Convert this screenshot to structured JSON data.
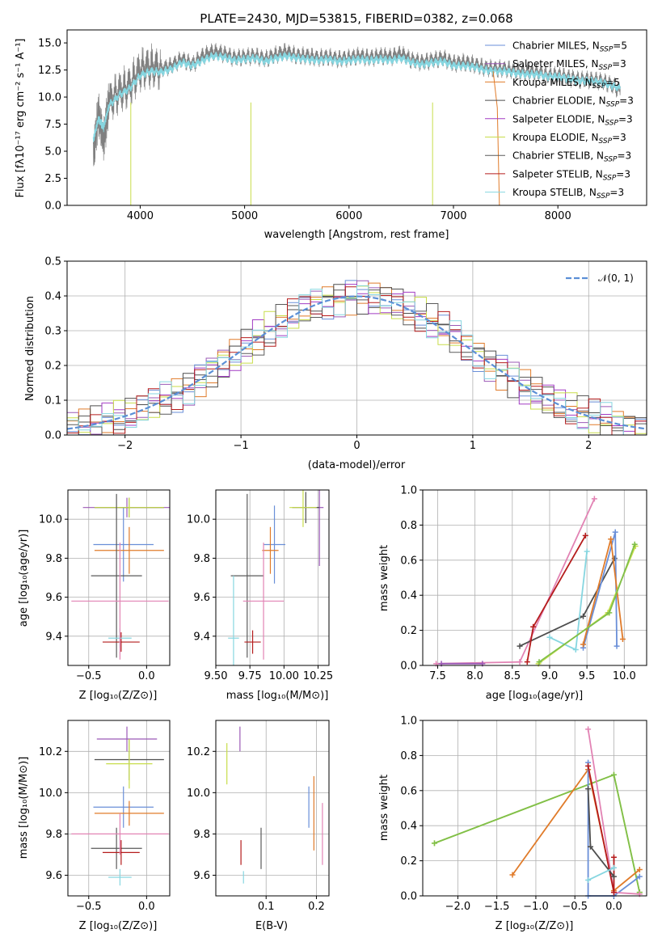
{
  "figure": {
    "title": "PLATE=2430, MJD=53815, FIBERID=0382, z=0.068"
  },
  "colors": [
    "#6a8fd8",
    "#9b59b6",
    "#e07b2a",
    "#4e4e4e",
    "#a23cc4",
    "#c8dd4a",
    "#5a5a5a",
    "#b51c1c",
    "#86d6e0",
    "#e283b4",
    "#7fbf4a"
  ],
  "spectrum": {
    "type": "line",
    "xlabel": "wavelength [Angstrom, rest frame]",
    "ylabel": "Flux [fλ10⁻¹⁷ erg cm⁻² s⁻¹ A⁻¹]",
    "xlim": [
      3300,
      8850
    ],
    "ylim": [
      0,
      16.2
    ],
    "xticks": [
      4000,
      5000,
      6000,
      7000,
      8000
    ],
    "yticks": [
      "0.0",
      "2.5",
      "5.0",
      "7.5",
      "10.0",
      "12.5",
      "15.0"
    ],
    "legend": [
      {
        "label": "Chabrier MILES, N",
        "sub": "SSP",
        "suffix": "=5",
        "color": "#6a8fd8"
      },
      {
        "label": "Salpeter MILES, N",
        "sub": "SSP",
        "suffix": "=3",
        "color": "#9b59b6"
      },
      {
        "label": "Kroupa MILES, N",
        "sub": "SSP",
        "suffix": "=5",
        "color": "#e07b2a"
      },
      {
        "label": "Chabrier ELODIE, N",
        "sub": "SSP",
        "suffix": "=3",
        "color": "#4e4e4e"
      },
      {
        "label": "Salpeter ELODIE, N",
        "sub": "SSP",
        "suffix": "=3",
        "color": "#a23cc4"
      },
      {
        "label": "Kroupa ELODIE, N",
        "sub": "SSP",
        "suffix": "=3",
        "color": "#c8dd4a"
      },
      {
        "label": "Chabrier STELIB, N",
        "sub": "SSP",
        "suffix": "=3",
        "color": "#5a5a5a"
      },
      {
        "label": "Salpeter STELIB, N",
        "sub": "SSP",
        "suffix": "=3",
        "color": "#b51c1c"
      },
      {
        "label": "Kroupa STELIB, N",
        "sub": "SSP",
        "suffix": "=3",
        "color": "#86d6e0"
      }
    ],
    "series": [
      {
        "name": "data",
        "color": "#808080",
        "x": [
          3550,
          3600,
          3650,
          3700,
          3800,
          3900,
          4000,
          4100,
          4200,
          4300,
          4400,
          4500,
          4600,
          4700,
          4800,
          4900,
          5000,
          5100,
          5200,
          5300,
          5400,
          5500,
          5600,
          5700,
          5800,
          5900,
          6000,
          6100,
          6200,
          6300,
          6400,
          6500,
          6600,
          6700,
          6800,
          6900,
          7000,
          7100,
          7200,
          7300,
          7400,
          7500,
          7600,
          7700,
          7800,
          7900,
          8000,
          8100,
          8200,
          8300,
          8400,
          8500,
          8600
        ],
        "y": [
          4.5,
          8.5,
          6.0,
          9.5,
          10.5,
          11.0,
          12.5,
          12.8,
          12.6,
          12.9,
          13.5,
          13.0,
          13.8,
          14.2,
          14.0,
          13.6,
          13.7,
          13.8,
          13.5,
          13.9,
          14.2,
          13.8,
          13.8,
          13.6,
          13.7,
          13.5,
          13.6,
          13.8,
          13.6,
          13.8,
          13.7,
          14.0,
          13.4,
          13.2,
          13.4,
          13.6,
          13.1,
          13.2,
          13.0,
          12.7,
          12.6,
          12.6,
          12.4,
          12.3,
          12.3,
          12.0,
          12.0,
          11.8,
          11.6,
          11.6,
          11.5,
          11.2,
          10.6
        ]
      },
      {
        "name": "model",
        "color": "#86d6e0",
        "x": [
          3550,
          3600,
          3650,
          3700,
          3800,
          3900,
          4000,
          4100,
          4200,
          4300,
          4400,
          4500,
          4600,
          4700,
          4800,
          4900,
          5000,
          5100,
          5200,
          5300,
          5400,
          5500,
          5600,
          5700,
          5800,
          5900,
          6000,
          6100,
          6200,
          6300,
          6400,
          6500,
          6600,
          6700,
          6800,
          6900,
          7000,
          7100,
          7200,
          7300,
          7400,
          7500,
          7600,
          7700,
          7800,
          7900,
          8000,
          8100,
          8200,
          8300,
          8400,
          8500,
          8600
        ],
        "y": [
          6.0,
          8.0,
          7.2,
          9.2,
          10.2,
          10.8,
          12.0,
          12.4,
          12.3,
          12.6,
          13.2,
          12.9,
          13.4,
          13.8,
          13.7,
          13.4,
          13.5,
          13.6,
          13.3,
          13.6,
          13.8,
          13.6,
          13.5,
          13.4,
          13.5,
          13.3,
          13.4,
          13.5,
          13.4,
          13.5,
          13.4,
          13.6,
          13.2,
          13.0,
          13.2,
          13.3,
          12.9,
          12.9,
          12.8,
          12.5,
          12.4,
          12.4,
          12.2,
          12.1,
          12.1,
          11.9,
          11.9,
          11.7,
          11.5,
          11.5,
          11.4,
          11.1,
          10.8
        ]
      }
    ]
  },
  "histogram": {
    "type": "line",
    "xlabel": "(data-model)/error",
    "ylabel": "Normed distribution",
    "xlim": [
      -2.5,
      2.5
    ],
    "ylim": [
      0,
      0.5
    ],
    "xticks": [
      "−2",
      "−1",
      "0",
      "1",
      "2"
    ],
    "yticks": [
      "0.0",
      "0.1",
      "0.2",
      "0.3",
      "0.4",
      "0.5"
    ],
    "legend": [
      {
        "label": "𝒩(0, 1)",
        "color": "#5b8fd6"
      }
    ],
    "gaussian": {
      "mean": 0,
      "sigma": 1
    }
  },
  "age_vs_Z": {
    "type": "scatter",
    "xlabel": "Z [log₁₀(Z/Z⊙)]",
    "ylabel": "age  [log₁₀(age/yr)]",
    "xlim": [
      -0.68,
      0.2
    ],
    "ylim": [
      9.25,
      10.15
    ],
    "xticks": [
      "−0.5",
      "0.0"
    ],
    "yticks": [
      "9.4",
      "9.6",
      "9.8",
      "10.0"
    ],
    "points": [
      {
        "x": -0.2,
        "y": 9.87,
        "xerr": 0.26,
        "yerr": 0.19,
        "color": "#6a8fd8"
      },
      {
        "x": -0.17,
        "y": 10.06,
        "xerr": 0.38,
        "yerr": 0.05,
        "color": "#9b59b6"
      },
      {
        "x": -0.15,
        "y": 9.84,
        "xerr": 0.3,
        "yerr": 0.12,
        "color": "#e07b2a"
      },
      {
        "x": -0.15,
        "y": 10.06,
        "xerr": 0.3,
        "yerr": 0.05,
        "color": "#4e4e4e"
      },
      {
        "x": -0.15,
        "y": 10.06,
        "xerr": 0.3,
        "yerr": 0.05,
        "color": "#c8dd4a"
      },
      {
        "x": -0.26,
        "y": 9.71,
        "xerr": 0.22,
        "yerr": 0.42,
        "color": "#5a5a5a"
      },
      {
        "x": -0.22,
        "y": 9.37,
        "xerr": 0.16,
        "yerr": 0.05,
        "color": "#b51c1c"
      },
      {
        "x": -0.23,
        "y": 9.39,
        "xerr": 0.1,
        "yerr": 0.05,
        "color": "#86d6e0"
      },
      {
        "x": -0.23,
        "y": 9.58,
        "xerr": 0.42,
        "yerr": 0.3,
        "color": "#e283b4"
      }
    ]
  },
  "age_vs_mass": {
    "type": "scatter",
    "xlabel": "mass [log₁₀(M/M⊙)]",
    "ylabel": "",
    "xlim": [
      9.5,
      10.33
    ],
    "ylim": [
      9.25,
      10.15
    ],
    "xticks": [
      "9.50",
      "9.75",
      "10.00",
      "10.25"
    ],
    "yticks": [
      "9.4",
      "9.6",
      "9.8",
      "10.0"
    ],
    "points": [
      {
        "x": 9.93,
        "y": 9.87,
        "xerr": 0.08,
        "yerr": 0.2,
        "color": "#6a8fd8"
      },
      {
        "x": 10.26,
        "y": 10.06,
        "xerr": 0.03,
        "yerr": 0.3,
        "color": "#9b59b6"
      },
      {
        "x": 9.9,
        "y": 9.84,
        "xerr": 0.06,
        "yerr": 0.12,
        "color": "#e07b2a"
      },
      {
        "x": 10.16,
        "y": 10.06,
        "xerr": 0.1,
        "yerr": 0.08,
        "color": "#4e4e4e"
      },
      {
        "x": 10.14,
        "y": 10.06,
        "xerr": 0.1,
        "yerr": 0.1,
        "color": "#c8dd4a"
      },
      {
        "x": 9.73,
        "y": 9.71,
        "xerr": 0.12,
        "yerr": 0.42,
        "color": "#5a5a5a"
      },
      {
        "x": 9.77,
        "y": 9.37,
        "xerr": 0.06,
        "yerr": 0.06,
        "color": "#b51c1c"
      },
      {
        "x": 9.63,
        "y": 9.39,
        "xerr": 0.04,
        "yerr": 0.32,
        "color": "#86d6e0"
      },
      {
        "x": 9.85,
        "y": 9.58,
        "xerr": 0.15,
        "yerr": 0.3,
        "color": "#e283b4"
      }
    ]
  },
  "weight_vs_age": {
    "type": "line",
    "xlabel": "age  [log₁₀(age/yr)]",
    "ylabel": "mass weight",
    "xlim": [
      7.3,
      10.3
    ],
    "ylim": [
      0,
      1.0
    ],
    "xticks": [
      "7.5",
      "8.0",
      "8.5",
      "9.0",
      "9.5",
      "10.0"
    ],
    "yticks": [
      "0.0",
      "0.2",
      "0.4",
      "0.6",
      "0.8",
      "1.0"
    ],
    "series": [
      {
        "color": "#e283b4",
        "x": [
          7.48,
          8.6,
          9.6
        ],
        "y": [
          0.01,
          0.02,
          0.95
        ]
      },
      {
        "color": "#4e4e4e",
        "x": [
          8.6,
          9.45,
          9.87
        ],
        "y": [
          0.11,
          0.28,
          0.61
        ]
      },
      {
        "color": "#b51c1c",
        "x": [
          8.7,
          8.78,
          9.48
        ],
        "y": [
          0.02,
          0.22,
          0.74
        ]
      },
      {
        "color": "#86d6e0",
        "x": [
          9.0,
          9.35,
          9.5
        ],
        "y": [
          0.16,
          0.09,
          0.65
        ]
      },
      {
        "color": "#6a8fd8",
        "x": [
          9.45,
          9.88,
          9.9
        ],
        "y": [
          0.1,
          0.76,
          0.11
        ]
      },
      {
        "color": "#e07b2a",
        "x": [
          9.45,
          9.82,
          9.98
        ],
        "y": [
          0.12,
          0.72,
          0.15
        ]
      },
      {
        "color": "#c8dd4a",
        "x": [
          8.85,
          9.78,
          10.15
        ],
        "y": [
          0.01,
          0.3,
          0.68
        ]
      },
      {
        "color": "#7fbf4a",
        "x": [
          8.86,
          9.8,
          10.14
        ],
        "y": [
          0.02,
          0.3,
          0.69
        ]
      },
      {
        "color": "#9b59b6",
        "x": [
          7.55,
          8.1
        ],
        "y": [
          0.01,
          0.01
        ]
      }
    ]
  },
  "mass_vs_Z": {
    "type": "scatter",
    "xlabel": "Z [log₁₀(Z/Z⊙)]",
    "ylabel": "mass [log₁₀(M/M⊙)]",
    "xlim": [
      -0.68,
      0.2
    ],
    "ylim": [
      9.5,
      10.35
    ],
    "xticks": [
      "−0.5",
      "0.0"
    ],
    "yticks": [
      "9.6",
      "9.8",
      "10.0",
      "10.2"
    ],
    "points": [
      {
        "x": -0.2,
        "y": 9.93,
        "xerr": 0.26,
        "yerr": 0.1,
        "color": "#6a8fd8"
      },
      {
        "x": -0.17,
        "y": 10.26,
        "xerr": 0.26,
        "yerr": 0.06,
        "color": "#9b59b6"
      },
      {
        "x": -0.15,
        "y": 9.9,
        "xerr": 0.3,
        "yerr": 0.06,
        "color": "#e07b2a"
      },
      {
        "x": -0.15,
        "y": 10.16,
        "xerr": 0.3,
        "yerr": 0.1,
        "color": "#4e4e4e"
      },
      {
        "x": -0.15,
        "y": 10.14,
        "xerr": 0.2,
        "yerr": 0.12,
        "color": "#c8dd4a"
      },
      {
        "x": -0.26,
        "y": 9.73,
        "xerr": 0.22,
        "yerr": 0.1,
        "color": "#5a5a5a"
      },
      {
        "x": -0.22,
        "y": 9.71,
        "xerr": 0.16,
        "yerr": 0.06,
        "color": "#b51c1c"
      },
      {
        "x": -0.23,
        "y": 9.59,
        "xerr": 0.1,
        "yerr": 0.04,
        "color": "#86d6e0"
      },
      {
        "x": -0.23,
        "y": 9.8,
        "xerr": 0.42,
        "yerr": 0.1,
        "color": "#e283b4"
      }
    ]
  },
  "mass_vs_ebv": {
    "type": "scatter",
    "xlabel": "E(B-V)",
    "ylabel": "",
    "xlim": [
      0.0,
      0.225
    ],
    "ylim": [
      9.5,
      10.35
    ],
    "xticks": [
      "0.1",
      "0.2"
    ],
    "yticks": [
      "9.6",
      "9.8",
      "10.0",
      "10.2"
    ],
    "points": [
      {
        "x": 0.185,
        "y": 9.93,
        "xerr": 0,
        "yerr": 0.1,
        "color": "#6a8fd8"
      },
      {
        "x": 0.048,
        "y": 10.26,
        "xerr": 0,
        "yerr": 0.06,
        "color": "#9b59b6"
      },
      {
        "x": 0.195,
        "y": 9.9,
        "xerr": 0,
        "yerr": 0.18,
        "color": "#e07b2a"
      },
      {
        "x": 0.09,
        "y": 9.73,
        "xerr": 0,
        "yerr": 0.1,
        "color": "#5a5a5a"
      },
      {
        "x": 0.022,
        "y": 10.14,
        "xerr": 0,
        "yerr": 0.1,
        "color": "#c8dd4a"
      },
      {
        "x": 0.05,
        "y": 9.71,
        "xerr": 0,
        "yerr": 0.06,
        "color": "#b51c1c"
      },
      {
        "x": 0.055,
        "y": 9.59,
        "xerr": 0,
        "yerr": 0.03,
        "color": "#86d6e0"
      },
      {
        "x": 0.212,
        "y": 9.8,
        "xerr": 0,
        "yerr": 0.15,
        "color": "#e283b4"
      }
    ]
  },
  "weight_vs_Z": {
    "type": "line",
    "xlabel": "Z [log₁₀(Z/Z⊙)]",
    "ylabel": "mass weight",
    "xlim": [
      -2.45,
      0.42
    ],
    "ylim": [
      0,
      1.0
    ],
    "xticks": [
      "−2.0",
      "−1.5",
      "−1.0",
      "−0.5",
      "0.0"
    ],
    "yticks": [
      "0.0",
      "0.2",
      "0.4",
      "0.6",
      "0.8",
      "1.0"
    ],
    "series": [
      {
        "color": "#c8dd4a",
        "x": [
          -2.3,
          0.0,
          0.33
        ],
        "y": [
          0.3,
          0.69,
          0.02
        ]
      },
      {
        "color": "#7fbf4a",
        "x": [
          -2.3,
          0.0,
          0.33
        ],
        "y": [
          0.3,
          0.69,
          0.02
        ]
      },
      {
        "color": "#e07b2a",
        "x": [
          -1.3,
          -0.33,
          0.0,
          0.33
        ],
        "y": [
          0.12,
          0.72,
          0.03,
          0.15
        ]
      },
      {
        "color": "#6a8fd8",
        "x": [
          -0.33,
          -0.33,
          0.0,
          0.33
        ],
        "y": [
          0.76,
          0.0,
          0.0,
          0.11
        ]
      },
      {
        "color": "#e283b4",
        "x": [
          -0.33,
          0.0,
          0.33
        ],
        "y": [
          0.95,
          0.02,
          0.01
        ]
      },
      {
        "color": "#b51c1c",
        "x": [
          -0.33,
          0.0,
          0.0
        ],
        "y": [
          0.74,
          0.02,
          0.22
        ]
      },
      {
        "color": "#4e4e4e",
        "x": [
          -0.33,
          -0.3,
          0.0
        ],
        "y": [
          0.61,
          0.28,
          0.11
        ]
      },
      {
        "color": "#86d6e0",
        "x": [
          -0.33,
          0.0
        ],
        "y": [
          0.09,
          0.16
        ]
      }
    ]
  }
}
